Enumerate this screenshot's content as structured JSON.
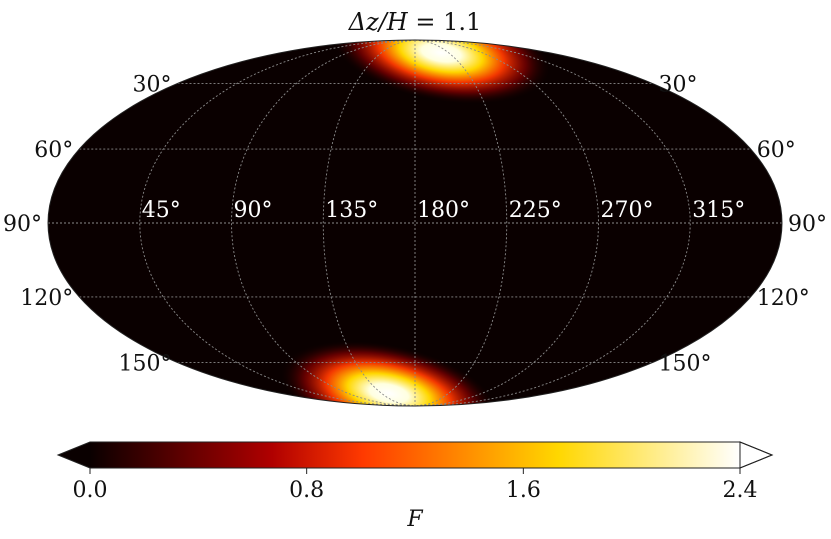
{
  "chart_data": {
    "type": "heatmap",
    "projection": "mollweide",
    "title_main": "Δz/H",
    "title_eq": "= 1.1",
    "latitude_labels": [
      "30°",
      "60°",
      "90°",
      "120°",
      "150°"
    ],
    "longitude_labels": [
      "45°",
      "90°",
      "135°",
      "180°",
      "225°",
      "270°",
      "315°"
    ],
    "colorbar": {
      "label": "F",
      "range": [
        0.0,
        2.4
      ],
      "ticks": [
        "0.0",
        "0.8",
        "1.6",
        "2.4"
      ],
      "extend": "both",
      "colormap": "hot"
    },
    "hotspots": [
      {
        "longitude_deg": 215,
        "colatitude_deg": 12,
        "peak_F": 2.4
      },
      {
        "longitude_deg": 145,
        "colatitude_deg": 168,
        "peak_F": 2.4
      }
    ],
    "background_F": 0.05,
    "grid": true
  },
  "colors": {
    "colormap_stops": [
      "#0a0000",
      "#b00000",
      "#ff3a00",
      "#ffd700",
      "#ffffff"
    ],
    "grid_line": "#8a8a8a"
  }
}
